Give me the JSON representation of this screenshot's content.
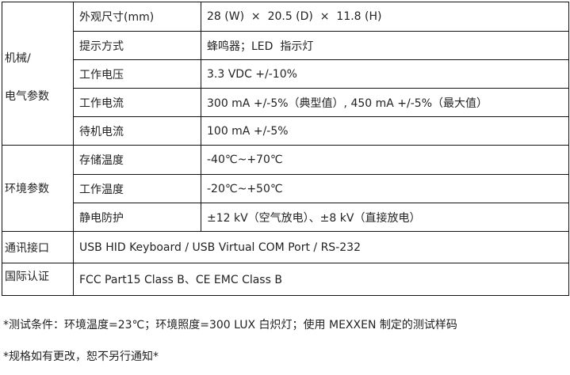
{
  "groups": {
    "mech_line1": "机械/",
    "mech_line2": "电气参数",
    "env": "环境参数",
    "comm": "通讯接口",
    "cert": "国际认证"
  },
  "rows": [
    {
      "label": "外观尺寸(mm)",
      "value": "28 (W)  ×  20.5 (D)  ×  11.8 (H)"
    },
    {
      "label": "提示方式",
      "value": "蜂鸣器；LED  指示灯"
    },
    {
      "label": "工作电压",
      "value": "3.3 VDC +/-10%"
    },
    {
      "label": "工作电流",
      "value": "300 mA +/-5%（典型值）, 450 mA +/-5%（最大值）"
    },
    {
      "label": "待机电流",
      "value": "100 mA +/-5%"
    },
    {
      "label": "存储温度",
      "value": "-40℃~+70℃"
    },
    {
      "label": "工作温度",
      "value": "-20℃~+50℃"
    },
    {
      "label": "静电防护",
      "value": "±12 kV（空气放电）、±8 kV（直接放电）"
    }
  ],
  "comm_value": "USB HID Keyboard / USB Virtual COM Port / RS-232",
  "cert_value": "FCC Part15 Class B、CE EMC Class B",
  "notes": [
    "*测试条件：环境温度=23℃；环境照度=300 LUX 白炽灯；使用 MEXXEN 制定的测试样码",
    "*规格如有更改，恕不另行通知*"
  ]
}
